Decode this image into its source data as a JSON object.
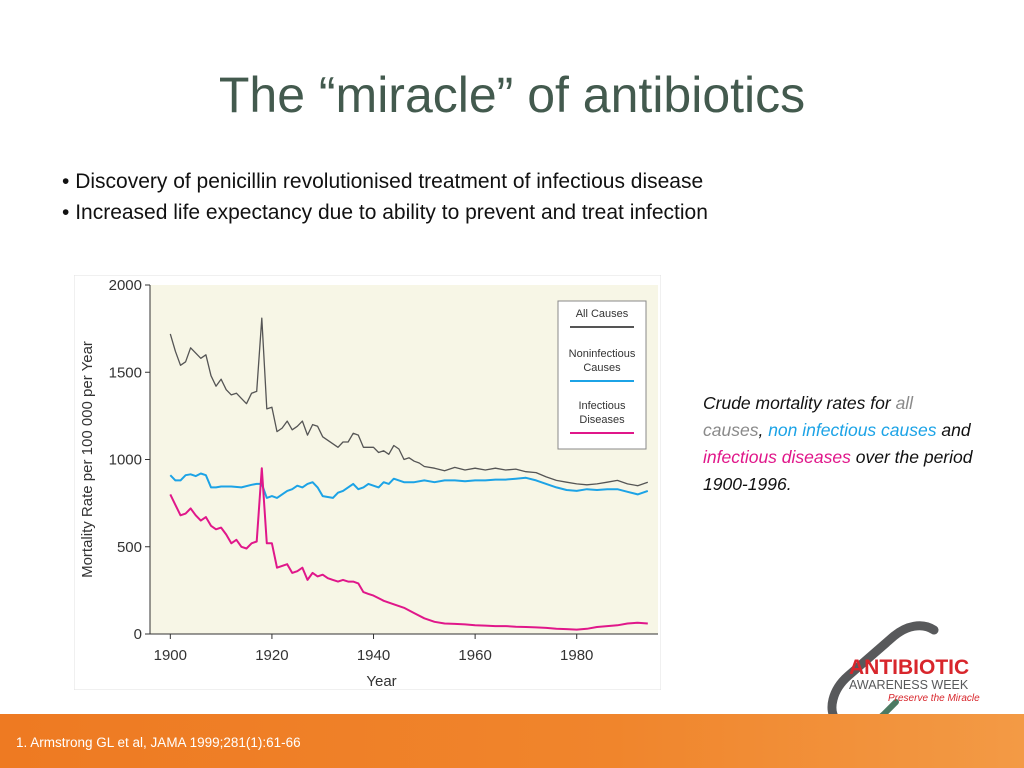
{
  "slide": {
    "title": "The “miracle” of antibiotics",
    "bullets": [
      "Discovery of penicillin revolutionised treatment of infectious disease",
      "Increased life expectancy due to ability to prevent and treat infection"
    ],
    "caption": {
      "p1": "Crude mortality rates for ",
      "all": "all causes",
      "p2": ", ",
      "non": "non infectious causes",
      "p3": " and ",
      "inf": "infectious diseases",
      "p4": " over the period 1900-1996."
    },
    "footer": "1. Armstrong GL et al, JAMA 1999;281(1):61-66",
    "logo": {
      "line1": "ANTIBIOTIC",
      "line2": "AWARENESS WEEK",
      "line3": "Preserve the Miracle"
    }
  },
  "colors": {
    "title": "#435a4e",
    "plot_bg": "#f7f6e6",
    "all_causes": "#555555",
    "noninfectious": "#1ca3e6",
    "infectious": "#e0178a",
    "footer": "#ee7a22",
    "logo_red": "#d8262c",
    "logo_gray": "#58595b",
    "logo_green": "#4c7a63"
  },
  "chart_data": {
    "type": "line",
    "xlabel": "Year",
    "ylabel": "Mortality Rate per 100 000 per Year",
    "xlim": [
      1896,
      1996
    ],
    "ylim": [
      0,
      2000
    ],
    "xticks": [
      1900,
      1920,
      1940,
      1960,
      1980
    ],
    "yticks": [
      0,
      500,
      1000,
      1500,
      2000
    ],
    "grid": false,
    "legend_position": "top-right",
    "series": [
      {
        "name": "All Causes",
        "x": [
          1900,
          1901,
          1902,
          1903,
          1904,
          1905,
          1906,
          1907,
          1908,
          1909,
          1910,
          1911,
          1912,
          1913,
          1914,
          1915,
          1916,
          1917,
          1918,
          1919,
          1920,
          1921,
          1922,
          1923,
          1924,
          1925,
          1926,
          1927,
          1928,
          1929,
          1930,
          1931,
          1932,
          1933,
          1934,
          1935,
          1936,
          1937,
          1938,
          1939,
          1940,
          1941,
          1942,
          1943,
          1944,
          1945,
          1946,
          1947,
          1948,
          1949,
          1950,
          1952,
          1954,
          1956,
          1958,
          1960,
          1962,
          1964,
          1966,
          1968,
          1970,
          1972,
          1974,
          1976,
          1978,
          1980,
          1982,
          1984,
          1986,
          1988,
          1990,
          1992,
          1994
        ],
        "y": [
          1720,
          1620,
          1540,
          1560,
          1640,
          1610,
          1580,
          1600,
          1480,
          1420,
          1460,
          1400,
          1370,
          1380,
          1350,
          1320,
          1380,
          1390,
          1810,
          1290,
          1300,
          1160,
          1180,
          1220,
          1170,
          1190,
          1220,
          1140,
          1200,
          1190,
          1130,
          1110,
          1090,
          1070,
          1100,
          1100,
          1150,
          1140,
          1070,
          1070,
          1070,
          1040,
          1050,
          1030,
          1080,
          1060,
          1000,
          1010,
          990,
          980,
          960,
          950,
          935,
          955,
          940,
          950,
          940,
          950,
          940,
          945,
          930,
          925,
          900,
          880,
          870,
          860,
          855,
          860,
          870,
          880,
          860,
          850,
          870
        ]
      },
      {
        "name": "Noninfectious Causes",
        "x": [
          1900,
          1901,
          1902,
          1903,
          1904,
          1905,
          1906,
          1907,
          1908,
          1909,
          1910,
          1912,
          1914,
          1916,
          1917,
          1918,
          1919,
          1920,
          1921,
          1922,
          1923,
          1924,
          1925,
          1926,
          1927,
          1928,
          1929,
          1930,
          1931,
          1932,
          1933,
          1934,
          1935,
          1936,
          1937,
          1938,
          1939,
          1940,
          1941,
          1942,
          1943,
          1944,
          1945,
          1946,
          1948,
          1950,
          1952,
          1954,
          1956,
          1958,
          1960,
          1962,
          1964,
          1966,
          1968,
          1970,
          1972,
          1974,
          1976,
          1978,
          1980,
          1982,
          1984,
          1986,
          1988,
          1990,
          1992,
          1994
        ],
        "y": [
          910,
          880,
          880,
          910,
          915,
          905,
          920,
          910,
          840,
          840,
          845,
          845,
          840,
          855,
          860,
          860,
          780,
          790,
          780,
          800,
          820,
          830,
          850,
          840,
          860,
          870,
          840,
          790,
          785,
          780,
          810,
          820,
          840,
          860,
          830,
          840,
          860,
          850,
          840,
          870,
          860,
          890,
          880,
          870,
          870,
          880,
          870,
          880,
          880,
          875,
          880,
          880,
          885,
          885,
          890,
          895,
          880,
          860,
          840,
          825,
          820,
          830,
          825,
          830,
          830,
          815,
          800,
          820
        ]
      },
      {
        "name": "Infectious Diseases",
        "x": [
          1900,
          1901,
          1902,
          1903,
          1904,
          1905,
          1906,
          1907,
          1908,
          1909,
          1910,
          1911,
          1912,
          1913,
          1914,
          1915,
          1916,
          1917,
          1918,
          1919,
          1920,
          1921,
          1922,
          1923,
          1924,
          1925,
          1926,
          1927,
          1928,
          1929,
          1930,
          1931,
          1932,
          1933,
          1934,
          1935,
          1936,
          1937,
          1938,
          1939,
          1940,
          1942,
          1944,
          1946,
          1948,
          1950,
          1952,
          1954,
          1956,
          1958,
          1960,
          1962,
          1964,
          1966,
          1968,
          1970,
          1972,
          1974,
          1976,
          1978,
          1980,
          1982,
          1984,
          1986,
          1988,
          1990,
          1992,
          1994
        ],
        "y": [
          800,
          740,
          680,
          690,
          720,
          680,
          650,
          670,
          620,
          600,
          610,
          570,
          520,
          540,
          500,
          490,
          520,
          530,
          950,
          520,
          520,
          380,
          390,
          400,
          350,
          360,
          380,
          310,
          350,
          330,
          340,
          320,
          310,
          300,
          310,
          300,
          300,
          290,
          240,
          230,
          220,
          190,
          170,
          150,
          120,
          90,
          70,
          60,
          58,
          55,
          50,
          48,
          45,
          45,
          42,
          40,
          38,
          35,
          30,
          28,
          25,
          30,
          40,
          45,
          50,
          60,
          65,
          60
        ]
      }
    ]
  }
}
